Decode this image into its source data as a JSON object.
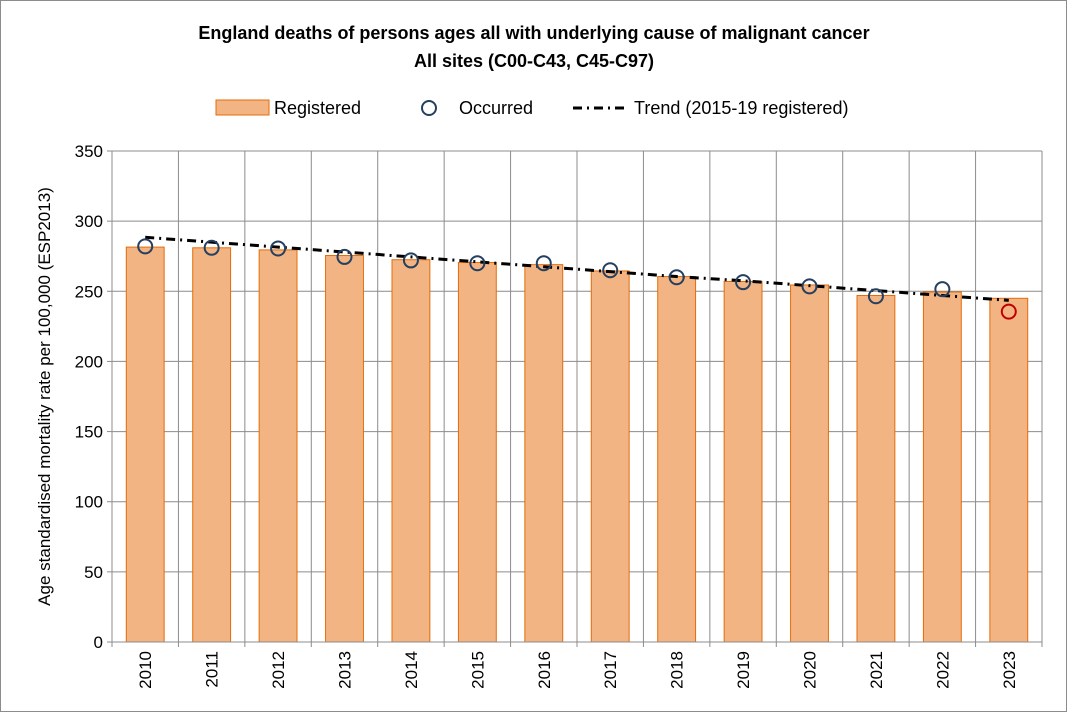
{
  "chart_data": {
    "type": "bar",
    "title": "England deaths of persons ages all with underlying cause of malignant cancer",
    "subtitle": "All sites (C00-C43, C45-C97)",
    "xlabel": "",
    "ylabel": "Age standardised mortality rate per 100,000 (ESP2013)",
    "ylim": [
      0,
      350
    ],
    "yticks": [
      0,
      50,
      100,
      150,
      200,
      250,
      300,
      350
    ],
    "grid": true,
    "legend_position": "top",
    "categories": [
      "2010",
      "2011",
      "2012",
      "2013",
      "2014",
      "2015",
      "2016",
      "2017",
      "2018",
      "2019",
      "2020",
      "2021",
      "2022",
      "2023"
    ],
    "series": [
      {
        "name": "Registered",
        "kind": "bar",
        "color": "#f2b482",
        "edge_color": "#e46c0a",
        "values": [
          281.5,
          281,
          279.5,
          275.5,
          272.5,
          270.5,
          269,
          264.5,
          260.5,
          257,
          254.5,
          247,
          249.5,
          245
        ]
      },
      {
        "name": "Occurred",
        "kind": "marker",
        "color": "#243f60",
        "highlight_color": "#c00000",
        "highlight_index": 13,
        "values": [
          282,
          281,
          280.5,
          274.5,
          272,
          270,
          270,
          265,
          260,
          256.5,
          253.5,
          246.5,
          251.5,
          235.5
        ]
      },
      {
        "name": "Trend (2015-19 registered)",
        "kind": "trend",
        "color": "#000000",
        "values": [
          288.5,
          285,
          281.5,
          278,
          274.5,
          271,
          267.5,
          264,
          260.5,
          257.5,
          254,
          250.5,
          247,
          243.5
        ]
      }
    ]
  }
}
